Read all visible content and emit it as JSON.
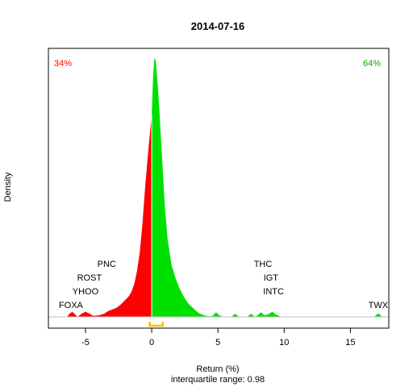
{
  "chart_data": {
    "type": "area",
    "title": "2014-07-16",
    "xlabel": "Return (%)",
    "ylabel": "Density",
    "subtitle": "interquartile range: 0.98",
    "xlim": [
      -7.8,
      17.9
    ],
    "x_ticks": [
      -5,
      0,
      5,
      10,
      15
    ],
    "pct_negative": "34%",
    "pct_positive": "64%",
    "iqr_bracket": [
      -0.15,
      0.83
    ],
    "colors": {
      "negative": "#ff0000",
      "positive": "#00e000",
      "bracket": "#f5c400",
      "baseline": "#bebebe"
    },
    "grid": false,
    "density": [
      [
        -7.0,
        0.0
      ],
      [
        -6.4,
        0.0
      ],
      [
        -6.2,
        0.012
      ],
      [
        -6.0,
        0.02
      ],
      [
        -5.8,
        0.01
      ],
      [
        -5.6,
        0.0
      ],
      [
        -5.3,
        0.012
      ],
      [
        -5.0,
        0.02
      ],
      [
        -4.7,
        0.012
      ],
      [
        -4.4,
        0.004
      ],
      [
        -4.0,
        0.006
      ],
      [
        -3.6,
        0.012
      ],
      [
        -3.3,
        0.022
      ],
      [
        -3.0,
        0.028
      ],
      [
        -2.7,
        0.034
      ],
      [
        -2.4,
        0.045
      ],
      [
        -2.1,
        0.06
      ],
      [
        -1.9,
        0.07
      ],
      [
        -1.7,
        0.082
      ],
      [
        -1.5,
        0.1
      ],
      [
        -1.3,
        0.13
      ],
      [
        -1.1,
        0.18
      ],
      [
        -0.9,
        0.25
      ],
      [
        -0.7,
        0.36
      ],
      [
        -0.5,
        0.5
      ],
      [
        -0.3,
        0.62
      ],
      [
        -0.15,
        0.7
      ],
      [
        0.0,
        0.78
      ],
      [
        0.1,
        0.92
      ],
      [
        0.2,
        1.0
      ],
      [
        0.3,
        0.99
      ],
      [
        0.45,
        0.9
      ],
      [
        0.6,
        0.78
      ],
      [
        0.8,
        0.6
      ],
      [
        1.0,
        0.42
      ],
      [
        1.2,
        0.3
      ],
      [
        1.5,
        0.2
      ],
      [
        1.8,
        0.15
      ],
      [
        2.1,
        0.11
      ],
      [
        2.4,
        0.08
      ],
      [
        2.7,
        0.055
      ],
      [
        3.0,
        0.04
      ],
      [
        3.3,
        0.025
      ],
      [
        3.6,
        0.013
      ],
      [
        4.0,
        0.005
      ],
      [
        4.4,
        0.002
      ],
      [
        4.6,
        0.004
      ],
      [
        4.85,
        0.018
      ],
      [
        5.1,
        0.006
      ],
      [
        5.4,
        0.0
      ],
      [
        6.0,
        0.0
      ],
      [
        6.3,
        0.012
      ],
      [
        6.6,
        0.0
      ],
      [
        7.2,
        0.0
      ],
      [
        7.5,
        0.012
      ],
      [
        7.8,
        0.0
      ],
      [
        8.0,
        0.006
      ],
      [
        8.25,
        0.018
      ],
      [
        8.5,
        0.006
      ],
      [
        8.8,
        0.01
      ],
      [
        9.1,
        0.02
      ],
      [
        9.4,
        0.008
      ],
      [
        9.8,
        0.0
      ],
      [
        16.8,
        0.0
      ],
      [
        17.1,
        0.014
      ],
      [
        17.4,
        0.0
      ]
    ],
    "annotations": [
      {
        "label": "FOXA",
        "x": -6.1,
        "row": 0
      },
      {
        "label": "YHOO",
        "x": -5.0,
        "row": 1
      },
      {
        "label": "ROST",
        "x": -4.7,
        "row": 2
      },
      {
        "label": "PNC",
        "x": -3.4,
        "row": 3
      },
      {
        "label": "INTC",
        "x": 9.2,
        "row": 1
      },
      {
        "label": "IGT",
        "x": 9.0,
        "row": 2
      },
      {
        "label": "THC",
        "x": 8.4,
        "row": 3
      },
      {
        "label": "TWX",
        "x": 17.1,
        "row": 0
      }
    ]
  }
}
